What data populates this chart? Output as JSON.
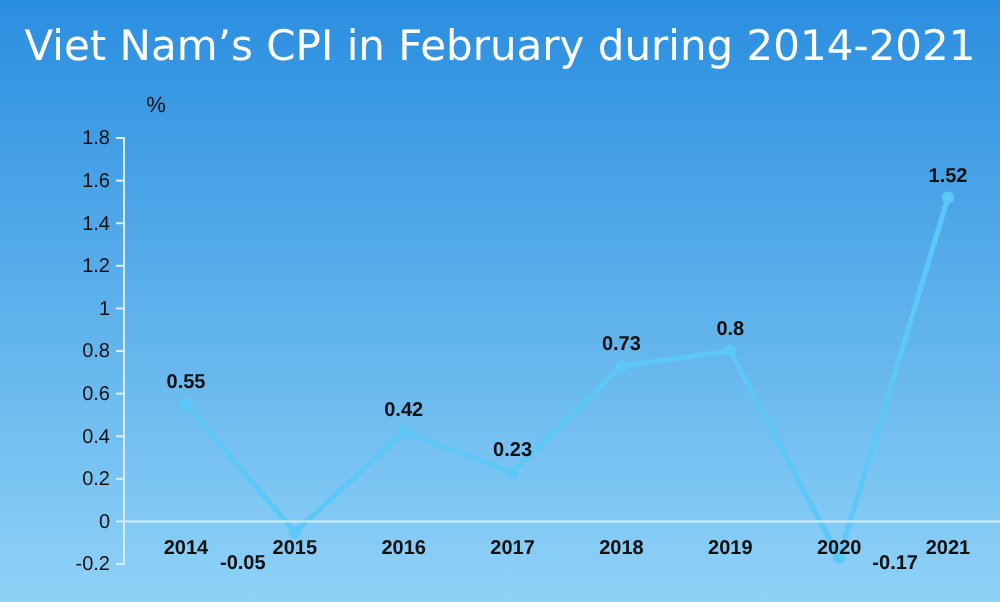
{
  "chart_data": {
    "type": "line",
    "title": "Viet Nam’s CPI in February during 2014-2021",
    "ylabel": "%",
    "categories": [
      "2014",
      "2015",
      "2016",
      "2017",
      "2018",
      "2019",
      "2020",
      "2021"
    ],
    "series": [
      {
        "color": "#5cc8f7",
        "values": [
          0.55,
          -0.05,
          0.42,
          0.23,
          0.73,
          0.8,
          -0.17,
          1.52
        ]
      }
    ],
    "ylim": [
      -0.2,
      1.8
    ],
    "yticks": [
      -0.2,
      0,
      0.2,
      0.4,
      0.6,
      0.8,
      1,
      1.2,
      1.4,
      1.6,
      1.8
    ],
    "data_labels": true,
    "marker": "circle",
    "line_style": "solid",
    "grid": false
  }
}
